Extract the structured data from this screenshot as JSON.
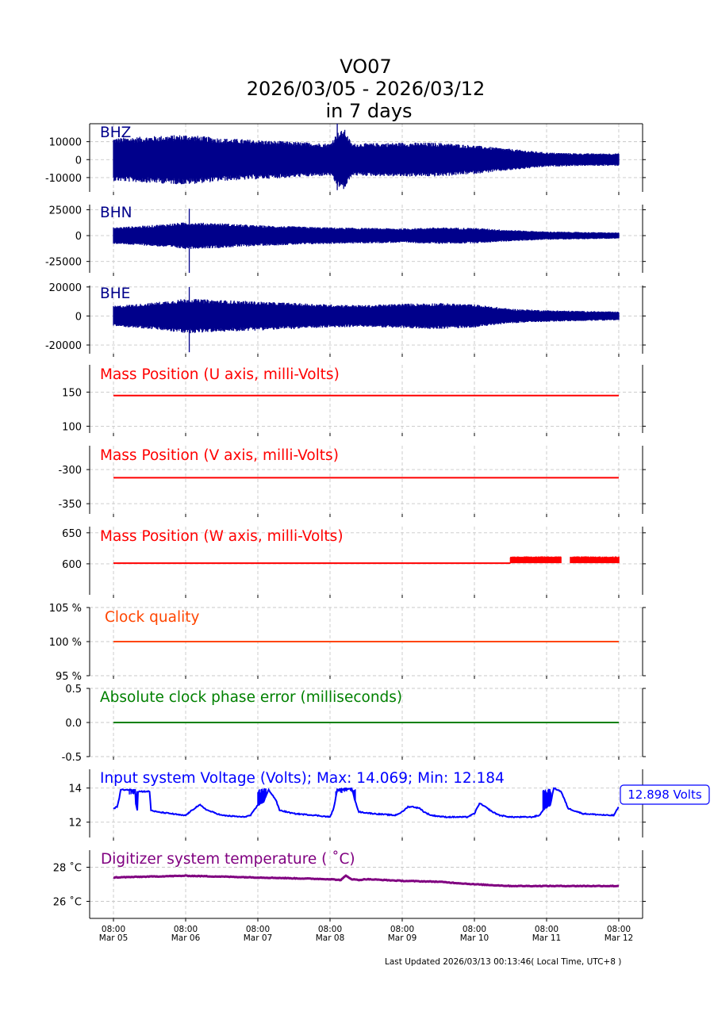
{
  "title": {
    "line1": "VO07",
    "line2": "2026/03/05 - 2026/03/12",
    "line3": "in 7 days"
  },
  "footer": "Last Updated 2026/03/13 00:13:46( Local Time, UTC+8 )",
  "colors": {
    "seismic": "#00008b",
    "mass": "#ff0000",
    "clock": "#ff4500",
    "phase": "#008000",
    "voltage": "#0000ff",
    "temperature": "#800080"
  },
  "chart_data": [
    {
      "id": "bhz",
      "type": "line",
      "label": "BHZ",
      "labelColor": "#00008b",
      "color": "#00008b",
      "style": "seismic",
      "ylim": [
        -18000,
        20000
      ],
      "yticks": [
        10000,
        0,
        -10000
      ],
      "yticklabels": [
        "10000",
        "0",
        "-10000"
      ],
      "x": [
        0,
        0.5,
        1,
        1.5,
        2,
        2.5,
        3,
        3.1,
        3.2,
        3.3,
        4,
        4.5,
        5,
        5.5,
        6,
        6.5,
        7
      ],
      "amplitude": [
        12000,
        13000,
        14000,
        12000,
        11000,
        10000,
        9000,
        15000,
        17000,
        9000,
        9500,
        9500,
        8000,
        6000,
        4000,
        3500,
        3500
      ],
      "spikes": [
        {
          "x": 3.1,
          "max": 20000,
          "min": -17000
        }
      ]
    },
    {
      "id": "bhn",
      "type": "line",
      "label": "BHN",
      "labelColor": "#00008b",
      "color": "#00008b",
      "style": "seismic",
      "ylim": [
        -36000,
        30000
      ],
      "yticks": [
        25000,
        0,
        -25000
      ],
      "yticklabels": [
        "25000",
        "0",
        "-25000"
      ],
      "x": [
        0,
        0.5,
        1,
        1.5,
        2,
        2.5,
        3,
        3.5,
        4,
        4.5,
        5,
        5.5,
        6,
        6.5,
        7
      ],
      "amplitude": [
        8000,
        10000,
        13000,
        12000,
        10000,
        9000,
        8000,
        7500,
        7000,
        8000,
        7500,
        5500,
        4000,
        3500,
        3000
      ],
      "spikes": [
        {
          "x": 1.05,
          "max": 26000,
          "min": -36000
        }
      ]
    },
    {
      "id": "bhe",
      "type": "line",
      "label": "BHE",
      "labelColor": "#00008b",
      "color": "#00008b",
      "style": "seismic",
      "ylim": [
        -26000,
        21000
      ],
      "yticks": [
        20000,
        0,
        -20000
      ],
      "yticklabels": [
        "20000",
        "0",
        "-20000"
      ],
      "x": [
        0,
        0.5,
        1,
        1.5,
        2,
        2.5,
        3,
        3.5,
        4,
        4.5,
        5,
        5.5,
        6,
        6.5,
        7
      ],
      "amplitude": [
        7000,
        9000,
        12000,
        11000,
        10000,
        9000,
        8000,
        7500,
        8500,
        9000,
        8000,
        5000,
        4000,
        3500,
        3000
      ],
      "spikes": [
        {
          "x": 1.05,
          "max": 20000,
          "min": -25000
        }
      ]
    },
    {
      "id": "mass_u",
      "type": "line",
      "label": "Mass Position (U axis, milli-Volts)",
      "labelColor": "#ff0000",
      "color": "#ff0000",
      "style": "line",
      "ylim": [
        90,
        190
      ],
      "yticks": [
        150,
        100
      ],
      "yticklabels": [
        "150",
        "100"
      ],
      "x": [
        0,
        7
      ],
      "y": [
        145,
        145
      ]
    },
    {
      "id": "mass_v",
      "type": "line",
      "label": "Mass Position (V axis, milli-Volts)",
      "labelColor": "#ff0000",
      "color": "#ff0000",
      "style": "line",
      "ylim": [
        -365,
        -265
      ],
      "yticks": [
        -300,
        -350
      ],
      "yticklabels": [
        "-300",
        "-350"
      ],
      "x": [
        0,
        7
      ],
      "y": [
        -312,
        -312
      ]
    },
    {
      "id": "mass_w",
      "type": "line",
      "label": "Mass Position (W axis, milli-Volts)",
      "labelColor": "#ff0000",
      "color": "#ff0000",
      "style": "mass_w",
      "ylim": [
        550,
        660
      ],
      "yticks": [
        650,
        600
      ],
      "yticklabels": [
        "650",
        "600"
      ],
      "x": [
        0,
        5.5
      ],
      "y": [
        601,
        601
      ],
      "noisy": {
        "xstart": 5.5,
        "xend": 7,
        "ymin": 601,
        "ymax": 612,
        "gaps": [
          [
            6.2,
            6.33
          ]
        ]
      }
    },
    {
      "id": "clock_quality",
      "type": "line",
      "label": "Clock quality",
      "labelColor": "#ff4500",
      "color": "#ff4500",
      "style": "line",
      "ylim": [
        95,
        105
      ],
      "yticks": [
        105,
        100,
        95
      ],
      "yticklabels": [
        "105 %",
        "100 %",
        "95 %"
      ],
      "x": [
        0,
        7
      ],
      "y": [
        100,
        100
      ]
    },
    {
      "id": "phase_error",
      "type": "line",
      "label": "Absolute clock phase error (milliseconds)",
      "labelColor": "#008000",
      "color": "#008000",
      "style": "line",
      "ylim": [
        -0.5,
        0.5
      ],
      "yticks": [
        0.5,
        0.0,
        -0.5
      ],
      "yticklabels": [
        "0.5",
        "0.0",
        "-0.5"
      ],
      "x": [
        0,
        7
      ],
      "y": [
        0,
        0
      ]
    },
    {
      "id": "voltage",
      "type": "line",
      "label": "Input system Voltage (Volts);    Max: 14.069; Min: 12.184",
      "labelColor": "#0000ff",
      "color": "#0000ff",
      "style": "voltage",
      "ylim": [
        11.1,
        15.1
      ],
      "yticks": [
        14,
        12
      ],
      "yticklabels": [
        "14",
        "12"
      ],
      "x": [
        0,
        0.05,
        0.08,
        0.1,
        0.3,
        0.31,
        0.33,
        0.34,
        0.5,
        0.52,
        0.6,
        0.8,
        0.95,
        1.0,
        1.15,
        1.2,
        1.3,
        1.5,
        1.8,
        1.9,
        2.0,
        2.08,
        2.15,
        2.25,
        2.3,
        2.5,
        2.8,
        3.0,
        3.05,
        3.1,
        3.3,
        3.35,
        3.4,
        3.6,
        3.9,
        4.0,
        4.08,
        4.15,
        4.25,
        4.3,
        4.4,
        4.6,
        4.9,
        5.0,
        5.07,
        5.15,
        5.25,
        5.35,
        5.5,
        5.8,
        5.9,
        5.97,
        6.05,
        6.1,
        6.2,
        6.25,
        6.3,
        6.5,
        6.85,
        6.93,
        7.0
      ],
      "y": [
        12.8,
        12.9,
        13.4,
        13.9,
        13.9,
        13.1,
        12.7,
        13.8,
        13.8,
        12.7,
        12.6,
        12.5,
        12.4,
        12.4,
        12.9,
        13.0,
        12.7,
        12.4,
        12.3,
        12.4,
        13.0,
        13.2,
        13.9,
        13.3,
        12.7,
        12.5,
        12.4,
        12.3,
        12.8,
        13.9,
        14.0,
        13.2,
        12.6,
        12.5,
        12.4,
        12.6,
        12.9,
        12.9,
        12.8,
        12.6,
        12.4,
        12.3,
        12.3,
        12.5,
        13.1,
        12.9,
        12.6,
        12.4,
        12.3,
        12.3,
        12.4,
        12.8,
        13.0,
        14.0,
        13.8,
        13.3,
        12.8,
        12.5,
        12.4,
        12.4,
        12.9
      ],
      "spiky": [
        [
          0.22,
          0.34,
          13.9
        ],
        [
          2.0,
          2.12,
          14.0
        ],
        [
          3.08,
          3.35,
          14.0
        ],
        [
          5.95,
          6.06,
          14.0
        ]
      ],
      "annotation": "12.898 Volts"
    },
    {
      "id": "temperature",
      "type": "line",
      "label": "Digitizer system temperature ( ˚C)",
      "labelColor": "#800080",
      "color": "#800080",
      "style": "line",
      "ylim": [
        25.0,
        29.0
      ],
      "yticks": [
        28,
        26
      ],
      "yticklabels": [
        "28 ˚C",
        "26 ˚C"
      ],
      "x": [
        0,
        1,
        2,
        3,
        3.15,
        3.22,
        3.3,
        3.4,
        3.5,
        4,
        4.5,
        5,
        5.5,
        6,
        6.5,
        7
      ],
      "y": [
        27.4,
        27.5,
        27.4,
        27.3,
        27.25,
        27.5,
        27.3,
        27.25,
        27.3,
        27.2,
        27.15,
        27.0,
        26.9,
        26.9,
        26.9,
        26.9
      ]
    }
  ],
  "xaxis": {
    "xlim": [
      -0.33,
      7.33
    ],
    "ticks": [
      0,
      1,
      2,
      3,
      4,
      5,
      6,
      7
    ],
    "ticklabels": [
      [
        "08:00",
        "Mar 05"
      ],
      [
        "08:00",
        "Mar 06"
      ],
      [
        "08:00",
        "Mar 07"
      ],
      [
        "08:00",
        "Mar 08"
      ],
      [
        "08:00",
        "Mar 09"
      ],
      [
        "08:00",
        "Mar 10"
      ],
      [
        "08:00",
        "Mar 11"
      ],
      [
        "08:00",
        "Mar 12"
      ]
    ]
  }
}
